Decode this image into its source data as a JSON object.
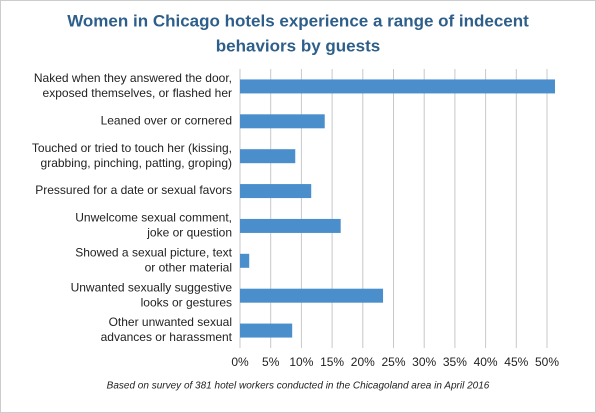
{
  "chart_data": {
    "type": "bar",
    "orientation": "horizontal",
    "title": [
      "Women in Chicago hotels experience a range of indecent",
      "behaviors by guests"
    ],
    "categories": [
      [
        "Naked when they answered the door,",
        "exposed themselves, or flashed her"
      ],
      [
        "Leaned over or cornered"
      ],
      [
        "Touched or tried to touch her (kissing,",
        "grabbing, pinching, patting, groping)"
      ],
      [
        "Pressured for a date or sexual favors"
      ],
      [
        "Unwelcome sexual comment,",
        "joke or question"
      ],
      [
        "Showed a sexual picture, text",
        "or other material"
      ],
      [
        "Unwanted sexually suggestive",
        "looks or gestures"
      ],
      [
        "Other unwanted sexual",
        "advances or harassment"
      ]
    ],
    "values": [
      51.3,
      13.8,
      9.0,
      11.6,
      16.4,
      1.5,
      23.3,
      8.5
    ],
    "color": "#4a8fcc",
    "xlim": [
      0,
      52
    ],
    "xticks": [
      {
        "value": 0,
        "label": "0%"
      },
      {
        "value": 5,
        "label": "5%"
      },
      {
        "value": 10,
        "label": "10%"
      },
      {
        "value": 15,
        "label": "15%"
      },
      {
        "value": 20,
        "label": "20%"
      },
      {
        "value": 25,
        "label": "25%"
      },
      {
        "value": 30,
        "label": "30%"
      },
      {
        "value": 35,
        "label": "35%"
      },
      {
        "value": 40,
        "label": "40%"
      },
      {
        "value": 45,
        "label": "45%"
      },
      {
        "value": 50,
        "label": "50%"
      }
    ],
    "grid": true,
    "note": "Based on survey of 381 hotel workers conducted in the Chicagoland area in April 2016"
  }
}
